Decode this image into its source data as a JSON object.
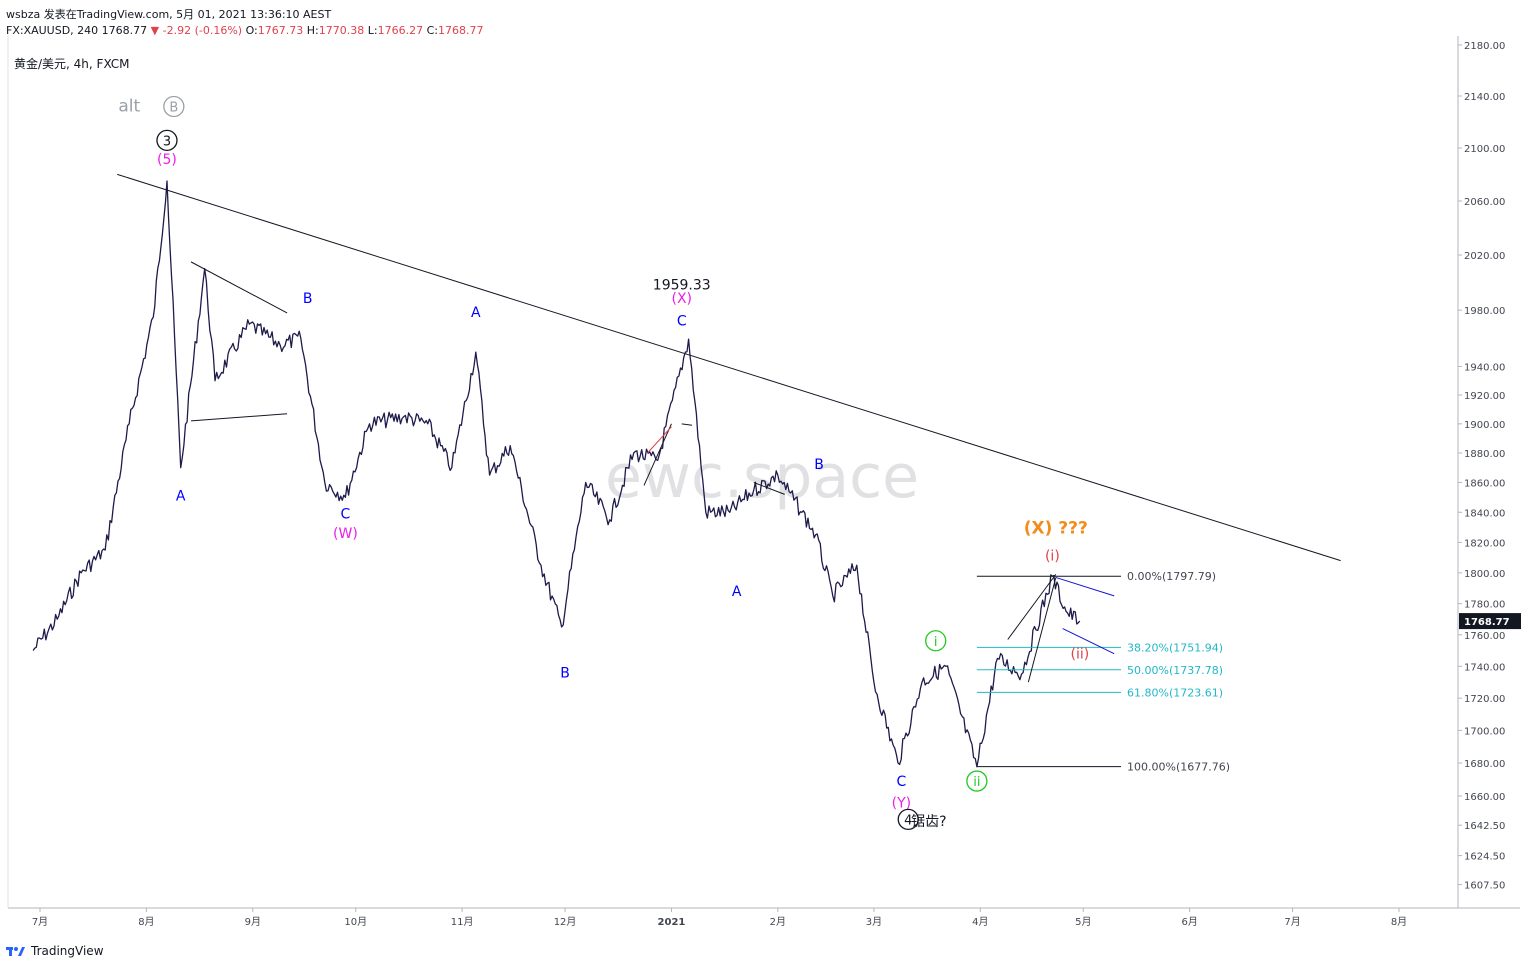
{
  "header": {
    "line1": "wsbza 发表在TradingView.com, 5月 01, 2021 13:36:10 AEST",
    "symbol_info": "FX:XAUUSD, 240 1768.77",
    "change": "▼ -2.92 (-0.16%)",
    "o_label": "O:",
    "o_value": "1767.73",
    "h_label": "H:",
    "h_value": "1770.38",
    "l_label": "L:",
    "l_value": "1766.27",
    "c_label": "C:",
    "c_value": "1768.77",
    "instrument": "黄金/美元, 4h, FXCM"
  },
  "footer": {
    "brand": "TradingView"
  },
  "watermark": "ewc.space",
  "colors": {
    "candles": "#1e1b4b",
    "blue_labels": "#1414d4",
    "magenta": "#e91ee9",
    "orange": "#f28c1a",
    "red": "#e0424c",
    "green": "#22c922",
    "fib": "#22b8c8",
    "alt_gray": "#9aa0a6",
    "price_tag": "#131722"
  },
  "chart_data": {
    "type": "line",
    "title": "黄金/美元, 4h, FXCM",
    "y_axis": {
      "ticks": [
        "2180.00",
        "2140.00",
        "2100.00",
        "2060.00",
        "2020.00",
        "1980.00",
        "1940.00",
        "1920.00",
        "1900.00",
        "1880.00",
        "1860.00",
        "1840.00",
        "1820.00",
        "1800.00",
        "1780.00",
        "1760.00",
        "1740.00",
        "1720.00",
        "1700.00",
        "1680.00",
        "1660.00",
        "1642.50",
        "1624.50",
        "1607.50"
      ],
      "log_scale": true,
      "range": [
        1585,
        2190
      ]
    },
    "x_axis": {
      "ticks": [
        "7月",
        "8月",
        "9月",
        "10月",
        "11月",
        "12月",
        "2021",
        "2月",
        "3月",
        "4月",
        "5月",
        "6月",
        "7月",
        "8月"
      ]
    },
    "last_price": "1768.77",
    "price_path": [
      [
        "2020-06-29",
        1750
      ],
      [
        "2020-07-06",
        1770
      ],
      [
        "2020-07-13",
        1800
      ],
      [
        "2020-07-20",
        1815
      ],
      [
        "2020-07-27",
        1900
      ],
      [
        "2020-08-03",
        1975
      ],
      [
        "2020-08-07",
        2075
      ],
      [
        "2020-08-11",
        1870
      ],
      [
        "2020-08-18",
        2010
      ],
      [
        "2020-08-21",
        1930
      ],
      [
        "2020-08-31",
        1970
      ],
      [
        "2020-09-09",
        1955
      ],
      [
        "2020-09-15",
        1960
      ],
      [
        "2020-09-22",
        1860
      ],
      [
        "2020-09-28",
        1850
      ],
      [
        "2020-10-05",
        1900
      ],
      [
        "2020-10-15",
        1905
      ],
      [
        "2020-10-22",
        1900
      ],
      [
        "2020-10-29",
        1870
      ],
      [
        "2020-11-05",
        1950
      ],
      [
        "2020-11-09",
        1865
      ],
      [
        "2020-11-15",
        1885
      ],
      [
        "2020-11-24",
        1805
      ],
      [
        "2020-11-30",
        1765
      ],
      [
        "2020-12-07",
        1860
      ],
      [
        "2020-12-14",
        1835
      ],
      [
        "2020-12-21",
        1880
      ],
      [
        "2020-12-28",
        1875
      ],
      [
        "2021-01-06",
        1959.33
      ],
      [
        "2021-01-11",
        1840
      ],
      [
        "2021-01-18",
        1840
      ],
      [
        "2021-01-25",
        1855
      ],
      [
        "2021-02-01",
        1865
      ],
      [
        "2021-02-08",
        1840
      ],
      [
        "2021-02-12",
        1825
      ],
      [
        "2021-02-17",
        1785
      ],
      [
        "2021-02-24",
        1805
      ],
      [
        "2021-03-01",
        1730
      ],
      [
        "2021-03-08",
        1680
      ],
      [
        "2021-03-15",
        1730
      ],
      [
        "2021-03-22",
        1740
      ],
      [
        "2021-03-31",
        1677.76
      ],
      [
        "2021-04-06",
        1745
      ],
      [
        "2021-04-13",
        1735
      ],
      [
        "2021-04-22",
        1797.79
      ],
      [
        "2021-04-26",
        1775
      ],
      [
        "2021-04-30",
        1768.77
      ]
    ],
    "trendline": {
      "from": [
        "2020-07-27",
        2080
      ],
      "to": [
        "2021-07-15",
        1808
      ]
    },
    "fibonacci": {
      "levels": [
        {
          "label": "0.00%(1797.79)",
          "price": 1797.79
        },
        {
          "label": "38.20%(1751.94)",
          "price": 1751.94
        },
        {
          "label": "50.00%(1737.78)",
          "price": 1737.78
        },
        {
          "label": "61.80%(1723.61)",
          "price": 1723.61
        },
        {
          "label": "100.00%(1677.76)",
          "price": 1677.76
        }
      ]
    },
    "annotations": [
      {
        "text": "alt",
        "at": [
          "2020-07-27",
          2128
        ],
        "color": "alt_gray"
      },
      {
        "text": "B",
        "at": [
          "2020-08-09",
          2128
        ],
        "color": "alt_gray",
        "circled": true
      },
      {
        "text": "3",
        "at": [
          "2020-08-07",
          2102
        ],
        "color": "black",
        "circled": true
      },
      {
        "text": "(5)",
        "at": [
          "2020-08-07",
          2088
        ],
        "color": "magenta"
      },
      {
        "text": "A",
        "at": [
          "2020-08-11",
          1848
        ],
        "color": "blue"
      },
      {
        "text": "B",
        "at": [
          "2020-09-17",
          1985
        ],
        "color": "blue"
      },
      {
        "text": "C",
        "at": [
          "2020-09-28",
          1836
        ],
        "color": "blue"
      },
      {
        "text": "(W)",
        "at": [
          "2020-09-28",
          1823
        ],
        "color": "magenta"
      },
      {
        "text": "A",
        "at": [
          "2020-11-05",
          1975
        ],
        "color": "blue"
      },
      {
        "text": "B",
        "at": [
          "2020-12-01",
          1733
        ],
        "color": "blue"
      },
      {
        "text": "1959.33",
        "at": [
          "2021-01-04",
          1995
        ],
        "color": "black"
      },
      {
        "text": "(X)",
        "at": [
          "2021-01-04",
          1985
        ],
        "color": "magenta"
      },
      {
        "text": "C",
        "at": [
          "2021-01-04",
          1969
        ],
        "color": "blue"
      },
      {
        "text": "A",
        "at": [
          "2021-01-20",
          1785
        ],
        "color": "blue"
      },
      {
        "text": "B",
        "at": [
          "2021-02-13",
          1869
        ],
        "color": "blue"
      },
      {
        "text": "C",
        "at": [
          "2021-03-09",
          1666
        ],
        "color": "blue"
      },
      {
        "text": "(Y)",
        "at": [
          "2021-03-09",
          1653
        ],
        "color": "magenta"
      },
      {
        "text": "4",
        "at": [
          "2021-03-11",
          1643
        ],
        "color": "black",
        "circled": true
      },
      {
        "text": "锯齿?",
        "at": [
          "2021-03-17",
          1642
        ],
        "color": "black"
      },
      {
        "text": "i",
        "at": [
          "2021-03-19",
          1753
        ],
        "color": "green",
        "circled": true
      },
      {
        "text": "ii",
        "at": [
          "2021-03-31",
          1666
        ],
        "color": "green",
        "circled": true
      },
      {
        "text": "(X) ???",
        "at": [
          "2021-04-23",
          1826
        ],
        "color": "orange"
      },
      {
        "text": "(i)",
        "at": [
          "2021-04-22",
          1808
        ],
        "color": "red"
      },
      {
        "text": "(ii)",
        "at": [
          "2021-04-30",
          1745
        ],
        "color": "red"
      }
    ]
  }
}
